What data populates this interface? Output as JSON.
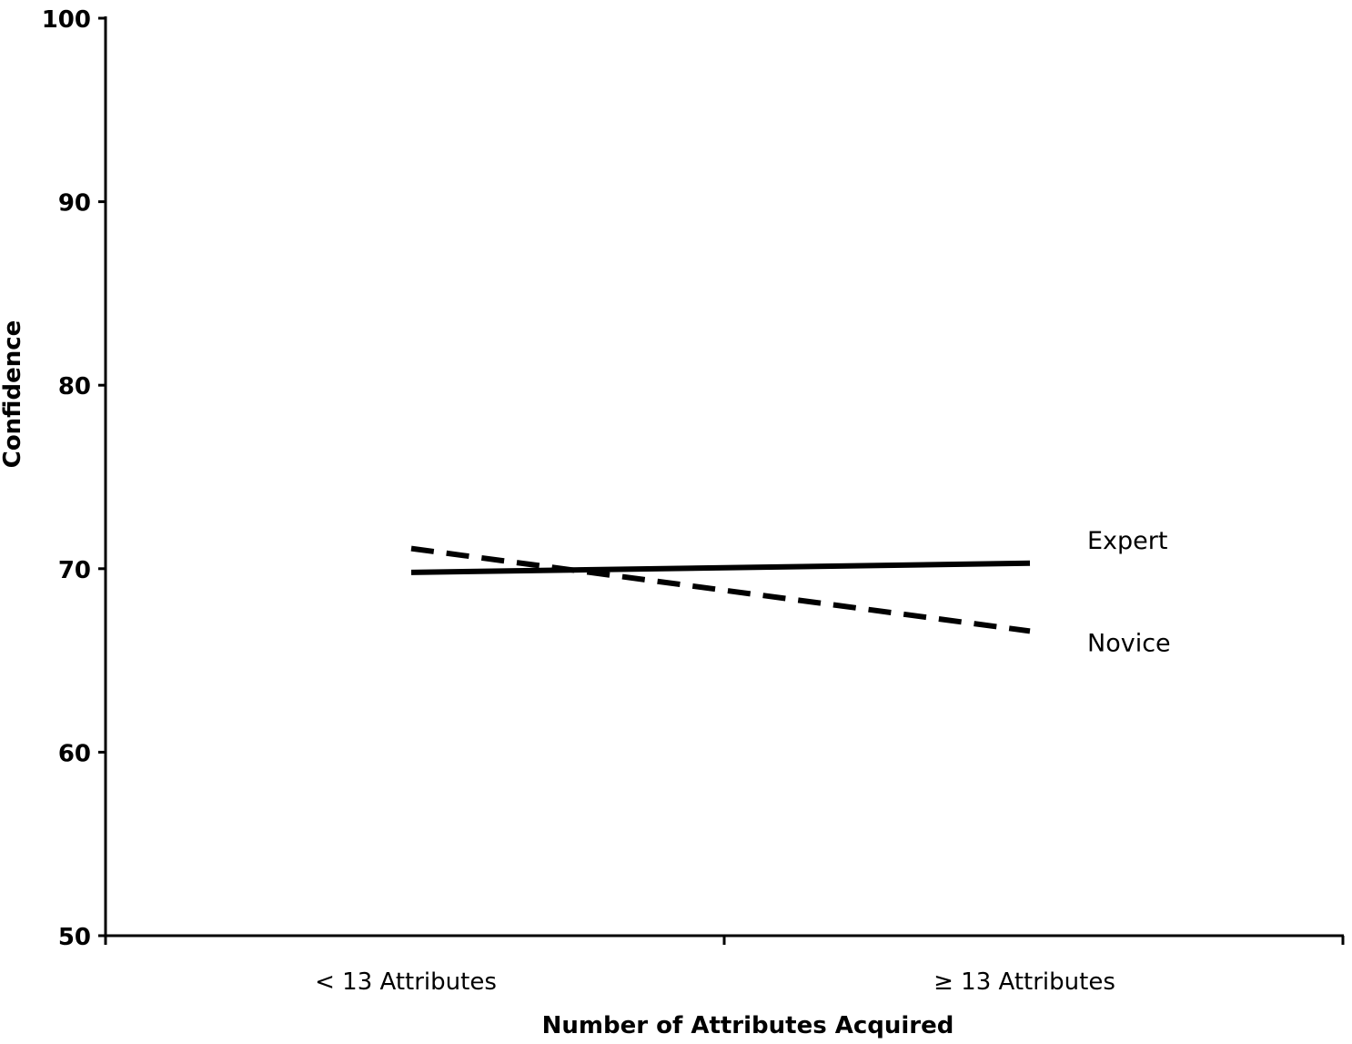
{
  "chart_data": {
    "type": "line",
    "title": "",
    "xlabel": "Number of Attributes Acquired",
    "ylabel": "Confidence",
    "categories": [
      "< 13 Attributes",
      "≥ 13 Attributes"
    ],
    "ylim": [
      50,
      100
    ],
    "yticks": [
      50,
      60,
      70,
      80,
      90,
      100
    ],
    "ytick_labels": [
      "50",
      "60",
      "70",
      "80",
      "90",
      "100"
    ],
    "grid": false,
    "legend": "direct labels at right end of lines",
    "series": [
      {
        "name": "Expert",
        "values": [
          69.8,
          70.3
        ],
        "style": "solid",
        "color": "#000000"
      },
      {
        "name": "Novice",
        "values": [
          71.1,
          66.6
        ],
        "style": "dashed",
        "color": "#000000"
      }
    ]
  }
}
